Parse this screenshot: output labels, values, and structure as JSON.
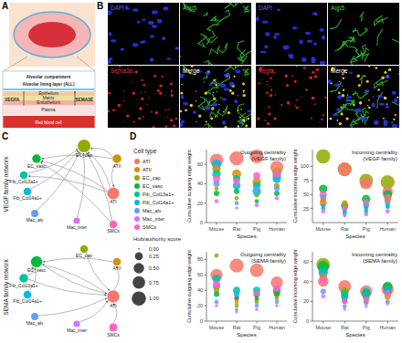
{
  "panel_labels": [
    "A",
    "B",
    "C",
    "D"
  ],
  "schematic": {
    "labels": [
      "Alveolar compartment",
      "Alveolar lining layer (ALL)",
      "Epithelium",
      "Matrix",
      "Endothelium",
      "Plasma",
      "Red blood cell"
    ],
    "ligands": [
      "VEGFA",
      "SEMA3E"
    ]
  },
  "microscopy": [
    {
      "channels": [
        "DAPI",
        "Aqp5",
        "Sema3e",
        "Merge"
      ]
    },
    {
      "channels": [
        "DAPI",
        "Aqp5",
        "Vegfa",
        "Merge"
      ]
    }
  ],
  "networks": [
    {
      "title": "VEGF family network",
      "nodes": [
        {
          "name": "EC_cap",
          "hub_authority": 1
        },
        {
          "name": "EC_vasc",
          "hub_authority": 0.3
        },
        {
          "name": "ATII",
          "hub_authority": 0.3
        },
        {
          "name": "Fib_Col13a1+",
          "hub_authority": 0.2
        },
        {
          "name": "Fib_Col14a1+",
          "hub_authority": 0.2
        },
        {
          "name": "ATI",
          "hub_authority": 0.8
        },
        {
          "name": "Mac_alv",
          "hub_authority": 0.15
        },
        {
          "name": "Mac_inter",
          "hub_authority": 0.1
        },
        {
          "name": "SMCs",
          "hub_authority": 0.2
        }
      ]
    },
    {
      "title": "SEMA family network",
      "nodes": [
        {
          "name": "EC_cap",
          "hub_authority": 0.2
        },
        {
          "name": "EC_vasc",
          "hub_authority": 0.7
        },
        {
          "name": "ATII",
          "hub_authority": 0.2
        },
        {
          "name": "Fib_Col13a1+",
          "hub_authority": 0.3
        },
        {
          "name": "Fib_Col14a1+",
          "hub_authority": 0.2
        },
        {
          "name": "ATI",
          "hub_authority": 0.9
        },
        {
          "name": "Mac_alv",
          "hub_authority": 0.15
        },
        {
          "name": "Mac_inter",
          "hub_authority": 0.1
        },
        {
          "name": "SMCs",
          "hub_authority": 0.25
        }
      ]
    }
  ],
  "legend_panel": {
    "title": "Cell type",
    "size_title": "Hub/authority score",
    "size_ticks": [
      {
        "value": 0,
        "label": "0.00"
      },
      {
        "value": 0.25,
        "label": "0.25"
      },
      {
        "value": 0.5,
        "label": "0.50"
      },
      {
        "value": 0.75,
        "label": "0.75"
      },
      {
        "value": 1,
        "label": "1.00"
      }
    ]
  },
  "chart_data": [
    {
      "type": "scatter",
      "title": "Outgoing centrality (VEGF family)",
      "x_label": "Species",
      "y_label": "Cumulative outgoing edge weight",
      "categories": [
        "Mouse",
        "Rat",
        "Pig",
        "Human"
      ],
      "ylim": [
        0,
        75
      ],
      "yticks": [
        0,
        20,
        40,
        60
      ],
      "grid": false,
      "series": [
        {
          "name": "ATI",
          "color": "#F8766D",
          "values": [
            64,
            66,
            68,
            57
          ],
          "hub_authority": [
            0.85,
            1,
            0.95,
            0.8
          ]
        },
        {
          "name": "ATII",
          "color": "#D39200",
          "values": [
            55,
            50,
            42,
            52
          ],
          "hub_authority": [
            0.3,
            0.35,
            0.3,
            0.35
          ]
        },
        {
          "name": "EC_cap",
          "color": "#93AA00",
          "values": [
            35,
            25,
            28,
            38
          ],
          "hub_authority": [
            0.05,
            0.05,
            0.05,
            0.1
          ]
        },
        {
          "name": "EC_vasc",
          "color": "#00BA38",
          "values": [
            30,
            32,
            22,
            30
          ],
          "hub_authority": [
            0.1,
            0.1,
            0.05,
            0.1
          ]
        },
        {
          "name": "Fib_Col13a1+",
          "color": "#00C19F",
          "values": [
            50,
            45,
            38,
            48
          ],
          "hub_authority": [
            0.3,
            0.2,
            0.25,
            0.3
          ]
        },
        {
          "name": "Fib_Col14a1+",
          "color": "#00B9E3",
          "values": [
            60,
            38,
            32,
            45
          ],
          "hub_authority": [
            0.4,
            0.25,
            0.3,
            0.3
          ]
        },
        {
          "name": "Mac_alv",
          "color": "#619CFF",
          "values": [
            40,
            20,
            35,
            35
          ],
          "hub_authority": [
            0.15,
            0.05,
            0.1,
            0.1
          ]
        },
        {
          "name": "Mac_inter",
          "color": "#DB72FB",
          "values": [
            22,
            15,
            18,
            25
          ],
          "hub_authority": [
            0.05,
            0.02,
            0.05,
            0.05
          ]
        },
        {
          "name": "SMCs",
          "color": "#FF61C3",
          "values": [
            45,
            42,
            48,
            50
          ],
          "hub_authority": [
            0.2,
            0.15,
            0.2,
            0.25
          ]
        }
      ]
    },
    {
      "type": "scatter",
      "title": "Incoming centrality (VEGF family)",
      "x_label": "Species",
      "y_label": "Cumulative incoming edge weight",
      "categories": [
        "Mouse",
        "Rat",
        "Pig",
        "Human"
      ],
      "ylim": [
        0,
        130
      ],
      "yticks": [
        25,
        50,
        75,
        100
      ],
      "grid": false,
      "series": [
        {
          "name": "ATI",
          "color": "#F8766D",
          "values": [
            35,
            95,
            70,
            55
          ],
          "hub_authority": [
            0.2,
            0.9,
            0.7,
            0.5
          ]
        },
        {
          "name": "ATII",
          "color": "#D39200",
          "values": [
            40,
            35,
            30,
            40
          ],
          "hub_authority": [
            0.1,
            0.1,
            0.1,
            0.15
          ]
        },
        {
          "name": "EC_cap",
          "color": "#93AA00",
          "values": [
            118,
            95,
            75,
            72
          ],
          "hub_authority": [
            1,
            0.95,
            0.9,
            0.95
          ]
        },
        {
          "name": "EC_vasc",
          "color": "#00BA38",
          "values": [
            60,
            30,
            42,
            50
          ],
          "hub_authority": [
            0.3,
            0.2,
            0.3,
            0.35
          ]
        },
        {
          "name": "Fib_Col13a1+",
          "color": "#00C19F",
          "values": [
            30,
            20,
            25,
            30
          ],
          "hub_authority": [
            0.05,
            0.05,
            0.05,
            0.05
          ]
        },
        {
          "name": "Fib_Col14a1+",
          "color": "#00B9E3",
          "values": [
            25,
            18,
            20,
            28
          ],
          "hub_authority": [
            0.05,
            0.05,
            0.05,
            0.05
          ]
        },
        {
          "name": "Mac_alv",
          "color": "#619CFF",
          "values": [
            45,
            15,
            30,
            35
          ],
          "hub_authority": [
            0.15,
            0.05,
            0.1,
            0.1
          ]
        },
        {
          "name": "Mac_inter",
          "color": "#DB72FB",
          "values": [
            20,
            12,
            15,
            20
          ],
          "hub_authority": [
            0.05,
            0.02,
            0.05,
            0.05
          ]
        },
        {
          "name": "SMCs",
          "color": "#FF61C3",
          "values": [
            50,
            25,
            35,
            45
          ],
          "hub_authority": [
            0.2,
            0.1,
            0.15,
            0.2
          ]
        }
      ]
    },
    {
      "type": "scatter",
      "title": "Outgoing centrality (SEMA family)",
      "x_label": "Species",
      "y_label": "Cumulative outgoing edge weight",
      "categories": [
        "Mouse",
        "Rat",
        "Pig",
        "Human"
      ],
      "ylim": [
        0,
        90
      ],
      "yticks": [
        0,
        20,
        40,
        60,
        80
      ],
      "grid": false,
      "series": [
        {
          "name": "ATI",
          "color": "#F8766D",
          "values": [
            60,
            72,
            66,
            50
          ],
          "hub_authority": [
            0.7,
            0.95,
            0.9,
            0.7
          ]
        },
        {
          "name": "ATII",
          "color": "#D39200",
          "values": [
            40,
            25,
            28,
            35
          ],
          "hub_authority": [
            0.1,
            0.05,
            0.05,
            0.1
          ]
        },
        {
          "name": "EC_cap",
          "color": "#93AA00",
          "values": [
            85,
            20,
            25,
            30
          ],
          "hub_authority": [
            0.05,
            0.05,
            0.05,
            0.05
          ]
        },
        {
          "name": "EC_vasc",
          "color": "#00BA38",
          "values": [
            35,
            30,
            30,
            35
          ],
          "hub_authority": [
            0.1,
            0.05,
            0.05,
            0.1
          ]
        },
        {
          "name": "Fib_Col13a1+",
          "color": "#00C19F",
          "values": [
            55,
            40,
            40,
            40
          ],
          "hub_authority": [
            0.3,
            0.2,
            0.2,
            0.25
          ]
        },
        {
          "name": "Fib_Col14a1+",
          "color": "#00B9E3",
          "values": [
            45,
            35,
            35,
            38
          ],
          "hub_authority": [
            0.2,
            0.1,
            0.15,
            0.2
          ]
        },
        {
          "name": "Mac_alv",
          "color": "#619CFF",
          "values": [
            25,
            15,
            20,
            25
          ],
          "hub_authority": [
            0.05,
            0.02,
            0.05,
            0.05
          ]
        },
        {
          "name": "Mac_inter",
          "color": "#DB72FB",
          "values": [
            20,
            12,
            15,
            20
          ],
          "hub_authority": [
            0.02,
            0.02,
            0.02,
            0.02
          ]
        },
        {
          "name": "SMCs",
          "color": "#FF61C3",
          "values": [
            48,
            30,
            35,
            42
          ],
          "hub_authority": [
            0.2,
            0.1,
            0.15,
            0.2
          ]
        }
      ]
    },
    {
      "type": "scatter",
      "title": "Incoming centrality (SEMA family)",
      "x_label": "Species",
      "y_label": "Cumulative incoming edge weight",
      "categories": [
        "Mouse",
        "Rat",
        "Pig",
        "Human"
      ],
      "ylim": [
        0,
        70
      ],
      "yticks": [
        0,
        20,
        40,
        60
      ],
      "grid": false,
      "series": [
        {
          "name": "ATI",
          "color": "#F8766D",
          "values": [
            40,
            35,
            30,
            32
          ],
          "hub_authority": [
            0.5,
            0.8,
            0.7,
            0.7
          ]
        },
        {
          "name": "ATII",
          "color": "#D39200",
          "values": [
            45,
            20,
            20,
            25
          ],
          "hub_authority": [
            0.2,
            0.1,
            0.1,
            0.15
          ]
        },
        {
          "name": "EC_cap",
          "color": "#93AA00",
          "values": [
            57,
            30,
            25,
            30
          ],
          "hub_authority": [
            0.9,
            0.3,
            0.2,
            0.3
          ]
        },
        {
          "name": "EC_vasc",
          "color": "#00BA38",
          "values": [
            55,
            25,
            28,
            35
          ],
          "hub_authority": [
            0.6,
            0.2,
            0.3,
            0.4
          ]
        },
        {
          "name": "Fib_Col13a1+",
          "color": "#00C19F",
          "values": [
            50,
            28,
            30,
            32
          ],
          "hub_authority": [
            0.4,
            0.2,
            0.2,
            0.25
          ]
        },
        {
          "name": "Fib_Col14a1+",
          "color": "#00B9E3",
          "values": [
            48,
            22,
            25,
            30
          ],
          "hub_authority": [
            0.3,
            0.1,
            0.15,
            0.2
          ]
        },
        {
          "name": "Mac_alv",
          "color": "#619CFF",
          "values": [
            30,
            15,
            18,
            20
          ],
          "hub_authority": [
            0.1,
            0.05,
            0.05,
            0.05
          ]
        },
        {
          "name": "Mac_inter",
          "color": "#DB72FB",
          "values": [
            25,
            12,
            15,
            18
          ],
          "hub_authority": [
            0.05,
            0.02,
            0.02,
            0.05
          ]
        },
        {
          "name": "SMCs",
          "color": "#FF61C3",
          "values": [
            42,
            20,
            22,
            28
          ],
          "hub_authority": [
            0.2,
            0.1,
            0.1,
            0.15
          ]
        }
      ]
    }
  ]
}
